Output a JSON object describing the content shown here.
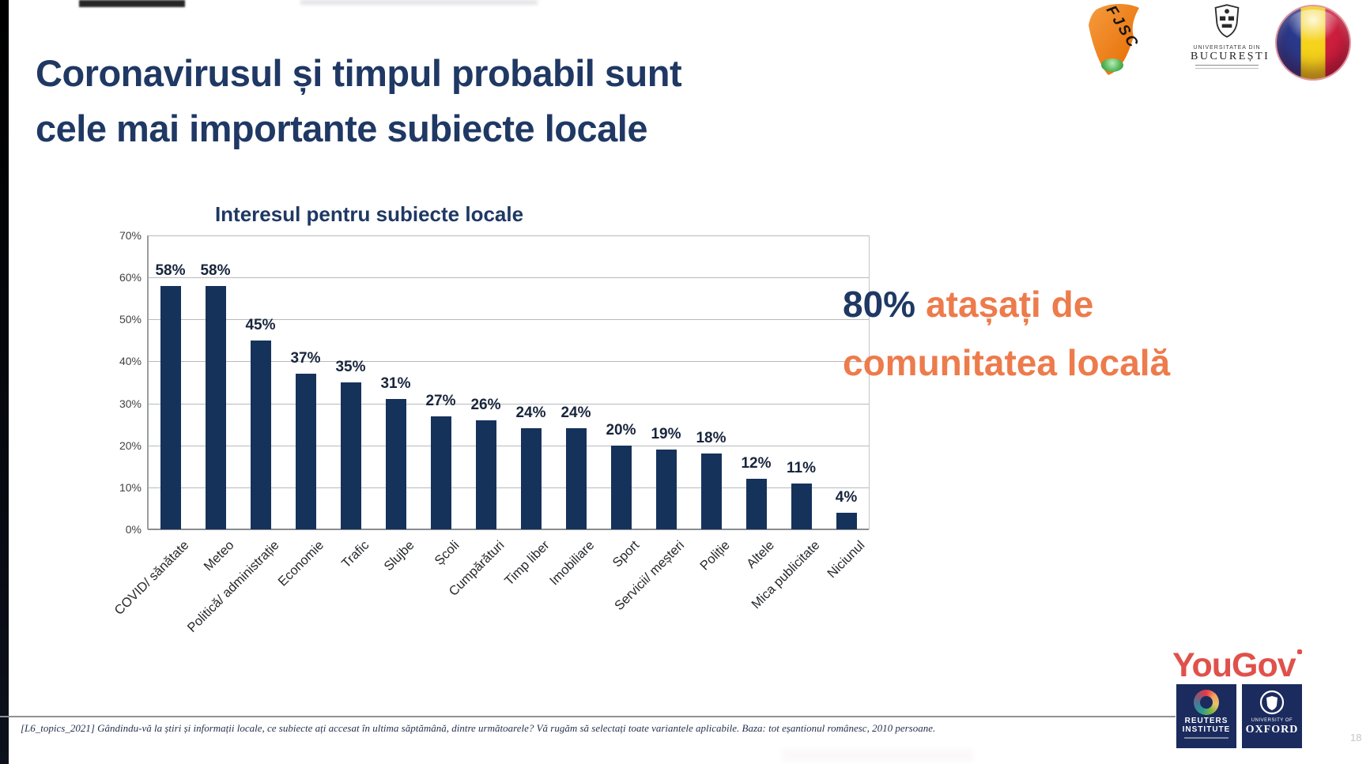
{
  "slide": {
    "title_line1": "Coronavirusul și timpul probabil sunt",
    "title_line2": "cele mai importante subiecte locale",
    "page_number": "18"
  },
  "chart_data": {
    "type": "bar",
    "title": "Interesul pentru subiecte locale",
    "categories": [
      "COVID/ sănătate",
      "Meteo",
      "Politică/ administrație",
      "Economie",
      "Trafic",
      "Slujbe",
      "Școli",
      "Cumpărături",
      "Timp liber",
      "Imobiliare",
      "Sport",
      "Servicii/ meșteri",
      "Poliție",
      "Altele",
      "Mica publicitate",
      "Niciunul"
    ],
    "values": [
      58,
      58,
      45,
      37,
      35,
      31,
      27,
      26,
      24,
      24,
      20,
      19,
      18,
      12,
      11,
      4
    ],
    "value_labels": [
      "58%",
      "58%",
      "45%",
      "37%",
      "35%",
      "31%",
      "27%",
      "26%",
      "24%",
      "24%",
      "20%",
      "19%",
      "18%",
      "12%",
      "11%",
      "4%"
    ],
    "y_ticks": [
      "70%",
      "60%",
      "50%",
      "40%",
      "30%",
      "20%",
      "10%",
      "0%"
    ],
    "ylim": [
      0,
      70
    ],
    "xlabel": "",
    "ylabel": "",
    "grid": true,
    "legend": "none",
    "bar_color": "#15325B"
  },
  "callout": {
    "pct": "80%",
    "line1_rest": "atașați de",
    "line2": "comunitatea locală",
    "pct_color": "#1F3864",
    "accent_color": "#ED7B4B"
  },
  "footnote": "[L6_topics_2021] Gândindu-vă la știri și informații locale, ce subiecte ați accesat în ultima săptămână, dintre următoarele? Vă rugăm să selectați toate variantele aplicabile. Baza: tot eșantionul românesc, 2010 persoane.",
  "logos": {
    "fjsc": "FJSC",
    "ub_line1": "UNIVERSITATEA DIN",
    "ub_line2": "BUCUREȘTI",
    "yougov": "YouGov",
    "reuters_line1": "REUTERS",
    "reuters_line2": "INSTITUTE",
    "oxford_line1": "UNIVERSITY OF",
    "oxford_line2": "OXFORD"
  },
  "colors": {
    "title_navy": "#1F3864",
    "bar_navy": "#15325B",
    "callout_orange": "#ED7B4B",
    "yougov_red": "#E0514B",
    "institute_navy": "#1B2B5E",
    "flag": [
      "#2A3A8C",
      "#F5D21B",
      "#CE1F3E"
    ]
  }
}
